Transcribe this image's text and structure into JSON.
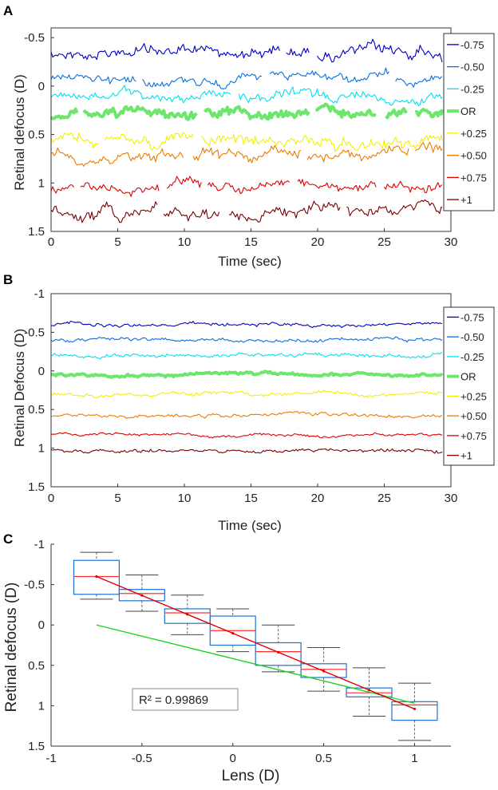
{
  "panels": [
    {
      "id": "A",
      "label": "A",
      "chart_data": {
        "type": "line",
        "xlabel": "Time (sec)",
        "ylabel": "Retinal defocus (D)",
        "xlim": [
          0,
          30
        ],
        "ylim": [
          -0.6,
          1.5
        ],
        "y_reversed": true,
        "xticks": [
          0,
          5,
          10,
          15,
          20,
          25,
          30
        ],
        "yticks": [
          -0.5,
          0,
          0.5,
          1,
          1.5
        ],
        "ytick_labels": [
          "-0.5",
          "0",
          "0.5",
          "1",
          "1.5"
        ],
        "series": [
          {
            "name": "-0.75",
            "mean": -0.35,
            "noise": 0.05,
            "color": "#0000c8",
            "width": 1.1,
            "gaps": [
              [
                17.2,
                17.6
              ],
              [
                19.4,
                19.9
              ]
            ]
          },
          {
            "name": "-0.50",
            "mean": -0.08,
            "noise": 0.04,
            "color": "#0a6edc",
            "width": 1.1,
            "gaps": [
              [
                6.4,
                6.8
              ],
              [
                15.9,
                16.3
              ],
              [
                25.4,
                25.8
              ]
            ]
          },
          {
            "name": "-0.25",
            "mean": 0.1,
            "noise": 0.04,
            "color": "#00e0f0",
            "width": 1.1,
            "gaps": [
              [
                13.5,
                14.0
              ]
            ]
          },
          {
            "name": "OR",
            "mean": 0.28,
            "noise": 0.04,
            "color": "#6ee66e",
            "width": 4,
            "gaps": [
              [
                2.0,
                2.4
              ],
              [
                11.0,
                11.4
              ],
              [
                19.4,
                19.8
              ],
              [
                24.5,
                25.0
              ],
              [
                26.8,
                27.2
              ]
            ]
          },
          {
            "name": "+0.25",
            "mean": 0.57,
            "noise": 0.05,
            "color": "#f0f000",
            "width": 1.1,
            "gaps": [
              [
                3.6,
                4.0
              ],
              [
                10.7,
                11.2
              ]
            ]
          },
          {
            "name": "+0.50",
            "mean": 0.68,
            "noise": 0.05,
            "color": "#ee7a00",
            "width": 1.1,
            "gaps": [
              [
                10.0,
                10.6
              ],
              [
                18.8,
                19.2
              ],
              [
                26.9,
                27.3
              ]
            ]
          },
          {
            "name": "+0.75",
            "mean": 1.05,
            "noise": 0.04,
            "color": "#e00000",
            "width": 1.1,
            "gaps": [
              [
                1.8,
                2.1
              ],
              [
                8.2,
                8.6
              ],
              [
                11.3,
                11.7
              ],
              [
                18.0,
                18.4
              ],
              [
                24.5,
                24.9
              ]
            ]
          },
          {
            "name": "+1",
            "mean": 1.3,
            "noise": 0.05,
            "color": "#7a0000",
            "width": 1.1,
            "gaps": [
              [
                8.0,
                8.4
              ],
              [
                12.7,
                13.3
              ],
              [
                21.7,
                22.1
              ]
            ]
          }
        ],
        "legend": {
          "position": "right",
          "entries": [
            "-0.75",
            "-0.50",
            "-0.25",
            "OR",
            "+0.25",
            "+0.50",
            "+0.75",
            "+1"
          ]
        }
      }
    },
    {
      "id": "B",
      "label": "B",
      "chart_data": {
        "type": "line",
        "xlabel": "Time (sec)",
        "ylabel": "Retinal Defocus (D)",
        "xlim": [
          0,
          30
        ],
        "ylim": [
          -1.0,
          1.5
        ],
        "y_reversed": true,
        "xticks": [
          0,
          5,
          10,
          15,
          20,
          25,
          30
        ],
        "yticks": [
          -1,
          -0.5,
          0,
          0.5,
          1,
          1.5
        ],
        "ytick_labels": [
          "-1",
          "-0.5",
          "0",
          "0.5",
          "1",
          "1.5"
        ],
        "series": [
          {
            "name": "-0.75",
            "mean": -0.6,
            "noise": 0.018,
            "color": "#0000c8",
            "width": 1.1,
            "gaps": []
          },
          {
            "name": "-0.50",
            "mean": -0.4,
            "noise": 0.018,
            "color": "#0a6edc",
            "width": 1.1,
            "gaps": []
          },
          {
            "name": "-0.25",
            "mean": -0.2,
            "noise": 0.02,
            "color": "#00e0f0",
            "width": 1.1,
            "gaps": []
          },
          {
            "name": "OR",
            "mean": 0.05,
            "noise": 0.015,
            "color": "#6ee66e",
            "width": 4,
            "gaps": []
          },
          {
            "name": "+0.25",
            "mean": 0.3,
            "noise": 0.02,
            "color": "#f0f000",
            "width": 1.1,
            "gaps": []
          },
          {
            "name": "+0.50",
            "mean": 0.58,
            "noise": 0.02,
            "color": "#ee7a00",
            "width": 1.1,
            "gaps": []
          },
          {
            "name": "+0.75",
            "mean": 0.83,
            "noise": 0.015,
            "color": "#e00000",
            "width": 1.1,
            "gaps": []
          },
          {
            "name": "+1",
            "mean": 1.03,
            "noise": 0.02,
            "color": "#7a0000",
            "width": 1.1,
            "gaps": []
          }
        ],
        "legend": {
          "position": "right",
          "entries": [
            "-0.75",
            "-0.50",
            "-0.25",
            "OR",
            "+0.25",
            "+0.50",
            "+0.75",
            "+1"
          ]
        }
      }
    },
    {
      "id": "C",
      "label": "C",
      "chart_data": {
        "type": "box",
        "xlabel": "Lens (D)",
        "ylabel": "Retinal defocus (D)",
        "xlim": [
          -1,
          1.2
        ],
        "ylim": [
          -1.0,
          1.5
        ],
        "y_reversed": true,
        "xticks": [
          -1,
          -0.5,
          0,
          0.5,
          1
        ],
        "xtick_labels": [
          "-1",
          "-0.5",
          "0",
          "0.5",
          "1"
        ],
        "yticks": [
          -1,
          -0.5,
          0,
          0.5,
          1,
          1.5
        ],
        "ytick_labels": [
          "-1",
          "-0.5",
          "0",
          "0.5",
          "1",
          "1.5"
        ],
        "box_half_width": 0.125,
        "boxes": [
          {
            "x": -0.75,
            "q1": -0.8,
            "median": -0.6,
            "q3": -0.38,
            "whisker_low": -0.9,
            "whisker_high": -0.32
          },
          {
            "x": -0.5,
            "q1": -0.44,
            "median": -0.39,
            "q3": -0.3,
            "whisker_low": -0.62,
            "whisker_high": -0.17
          },
          {
            "x": -0.25,
            "q1": -0.2,
            "median": -0.15,
            "q3": -0.02,
            "whisker_low": -0.37,
            "whisker_high": 0.12
          },
          {
            "x": 0.0,
            "q1": -0.11,
            "median": 0.07,
            "q3": 0.25,
            "whisker_low": -0.2,
            "whisker_high": 0.33
          },
          {
            "x": 0.25,
            "q1": 0.22,
            "median": 0.33,
            "q3": 0.5,
            "whisker_low": 0.0,
            "whisker_high": 0.58
          },
          {
            "x": 0.5,
            "q1": 0.48,
            "median": 0.55,
            "q3": 0.65,
            "whisker_low": 0.28,
            "whisker_high": 0.82
          },
          {
            "x": 0.75,
            "q1": 0.78,
            "median": 0.84,
            "q3": 0.89,
            "whisker_low": 0.53,
            "whisker_high": 1.13
          },
          {
            "x": 1.0,
            "q1": 0.95,
            "median": 0.99,
            "q3": 1.18,
            "whisker_low": 0.72,
            "whisker_high": 1.43
          }
        ],
        "fit_line": {
          "color": "#e00000",
          "points": [
            [
              -0.75,
              -0.6
            ],
            [
              1.0,
              1.04
            ]
          ]
        },
        "identity_line": {
          "color": "#22d322",
          "points": [
            [
              -0.75,
              0.0
            ],
            [
              1.0,
              0.97
            ]
          ]
        },
        "annotation": "R² = 0.99869",
        "box_color": "#1f6fd1",
        "median_color": "#ff3030",
        "whisker_color": "#666666"
      }
    }
  ]
}
